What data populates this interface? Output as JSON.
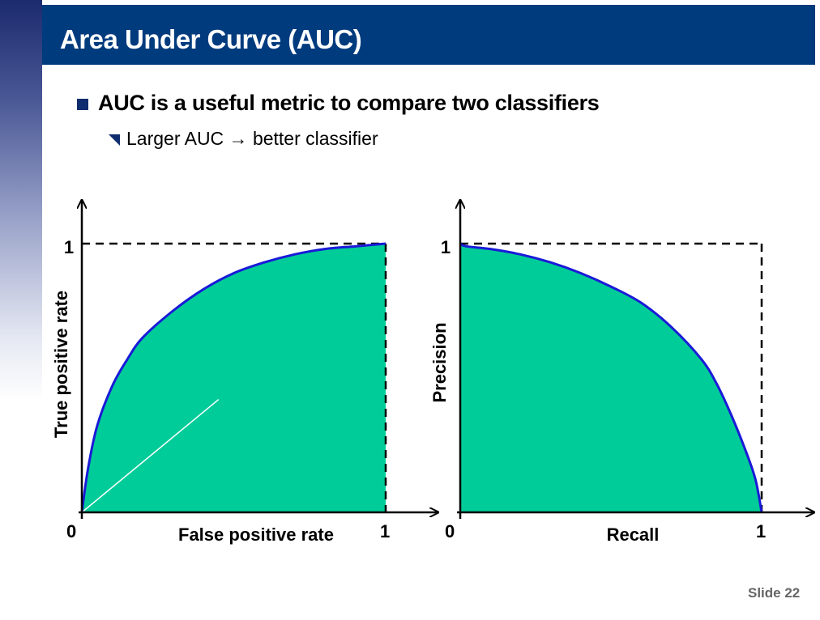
{
  "slide": {
    "title": "Area Under Curve (AUC)",
    "bullet_main": "AUC is a useful metric to compare two classifiers",
    "bullet_sub": "Larger AUC → better classifier",
    "slide_number": "Slide 22"
  },
  "colors": {
    "title_bar": "#003b7e",
    "fill": "#00cc99",
    "curve": "#1a1ad8",
    "bullet_square": "#0f2d6e"
  },
  "chart_data": [
    {
      "type": "area",
      "title": "",
      "xlabel": "False positive rate",
      "ylabel": "True positive rate",
      "xlim": [
        0,
        1
      ],
      "ylim": [
        0,
        1
      ],
      "x_ticks": [
        "0",
        "1"
      ],
      "y_ticks": [
        "1"
      ],
      "series": [
        {
          "x": [
            0,
            0.02,
            0.05,
            0.1,
            0.15,
            0.2,
            0.3,
            0.4,
            0.5,
            0.6,
            0.7,
            0.8,
            0.9,
            1.0
          ],
          "y": [
            0,
            0.16,
            0.32,
            0.47,
            0.57,
            0.65,
            0.75,
            0.83,
            0.89,
            0.93,
            0.96,
            0.98,
            0.99,
            1.0
          ]
        }
      ],
      "reference_lines": [
        "diagonal",
        "y=1 dashed",
        "x=1 dashed"
      ],
      "grid": false
    },
    {
      "type": "area",
      "title": "",
      "xlabel": "Recall",
      "ylabel": "Precision",
      "xlim": [
        0,
        1
      ],
      "ylim": [
        0,
        1
      ],
      "x_ticks": [
        "0",
        "1"
      ],
      "y_ticks": [
        "1"
      ],
      "series": [
        {
          "x": [
            0,
            0.02,
            0.1,
            0.2,
            0.3,
            0.4,
            0.5,
            0.6,
            0.7,
            0.8,
            0.85,
            0.9,
            0.95,
            0.98,
            1.0
          ],
          "y": [
            1.0,
            0.99,
            0.98,
            0.96,
            0.93,
            0.89,
            0.84,
            0.78,
            0.69,
            0.57,
            0.48,
            0.36,
            0.22,
            0.12,
            0.0
          ]
        }
      ],
      "reference_lines": [
        "y=1 dashed",
        "x=1 dashed"
      ],
      "grid": false
    }
  ]
}
